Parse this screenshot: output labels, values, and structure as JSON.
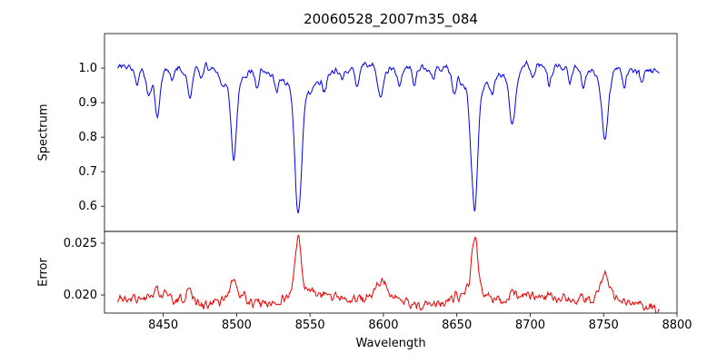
{
  "figure": {
    "background": "#ffffff"
  },
  "chart_data": {
    "type": "line",
    "title": "20060528_2007m35_084",
    "xlabel": "Wavelength",
    "x_start": 8419,
    "x_end": 8788,
    "x_step": 0.5,
    "xlim": [
      8410,
      8800
    ],
    "xticks": [
      {
        "value": 8450,
        "label": "8450"
      },
      {
        "value": 8500,
        "label": "8500"
      },
      {
        "value": 8550,
        "label": "8550"
      },
      {
        "value": 8600,
        "label": "8600"
      },
      {
        "value": 8650,
        "label": "8650"
      },
      {
        "value": 8700,
        "label": "8700"
      },
      {
        "value": 8750,
        "label": "8750"
      },
      {
        "value": 8800,
        "label": "8800"
      }
    ],
    "panels": [
      {
        "name": "spectrum",
        "ylabel": "Spectrum",
        "color": "#0000ee",
        "ylim": [
          0.527,
          1.1
        ],
        "yticks": [
          {
            "value": 1.0,
            "label": "1.0"
          },
          {
            "value": 0.9,
            "label": "0.9"
          },
          {
            "value": 0.8,
            "label": "0.8"
          },
          {
            "value": 0.7,
            "label": "0.7"
          },
          {
            "value": 0.6,
            "label": "0.6"
          }
        ],
        "continuum": 1.0,
        "continuum_wiggles": [
          [
            0.007,
            9.1,
            0.0
          ],
          [
            0.005,
            17.3,
            2.0
          ],
          [
            0.004,
            4.3,
            1.0
          ]
        ],
        "noise_amplitude": 0.03,
        "absorption_lines": [
          [
            8432,
            0.04,
            1.2
          ],
          [
            8440,
            0.06,
            1.3
          ],
          [
            8446,
            0.09,
            1.5
          ],
          [
            8446,
            0.03,
            3.0
          ],
          [
            8456,
            0.04,
            1.2
          ],
          [
            8468,
            0.06,
            1.6
          ],
          [
            8468,
            0.02,
            3.0
          ],
          [
            8476,
            0.04,
            1.2
          ],
          [
            8490,
            0.03,
            1.2
          ],
          [
            8498,
            0.21,
            1.9
          ],
          [
            8498,
            0.04,
            7.0
          ],
          [
            8514,
            0.05,
            1.4
          ],
          [
            8527,
            0.04,
            1.3
          ],
          [
            8542,
            0.35,
            2.2
          ],
          [
            8542,
            0.07,
            11.0
          ],
          [
            8560,
            0.04,
            1.3
          ],
          [
            8572,
            0.03,
            1.2
          ],
          [
            8582,
            0.05,
            1.4
          ],
          [
            8598,
            0.08,
            1.7
          ],
          [
            8598,
            0.02,
            3.0
          ],
          [
            8611,
            0.04,
            1.3
          ],
          [
            8621,
            0.05,
            1.4
          ],
          [
            8634,
            0.03,
            1.2
          ],
          [
            8648,
            0.06,
            1.5
          ],
          [
            8662,
            0.34,
            2.1
          ],
          [
            8662,
            0.06,
            9.0
          ],
          [
            8674,
            0.05,
            1.4
          ],
          [
            8688,
            0.13,
            1.9
          ],
          [
            8688,
            0.03,
            4.0
          ],
          [
            8702,
            0.04,
            1.3
          ],
          [
            8713,
            0.05,
            1.3
          ],
          [
            8727,
            0.04,
            1.2
          ],
          [
            8736,
            0.05,
            1.3
          ],
          [
            8751,
            0.17,
            2.0
          ],
          [
            8751,
            0.04,
            5.0
          ],
          [
            8764,
            0.05,
            1.3
          ],
          [
            8776,
            0.04,
            1.2
          ]
        ]
      },
      {
        "name": "error",
        "ylabel": "Error",
        "color": "#ee0000",
        "ylim": [
          0.01825,
          0.02614
        ],
        "yticks": [
          {
            "value": 0.025,
            "label": "0.025"
          },
          {
            "value": 0.02,
            "label": "0.020"
          }
        ],
        "baseline": 0.0195,
        "baseline_wiggles": [
          [
            0.0003,
            23.0,
            0.5
          ],
          [
            0.0002,
            8.0,
            1.5
          ]
        ],
        "noise_amplitude": 0.0015,
        "peaks": [
          [
            8446,
            0.0005,
            2.5
          ],
          [
            8468,
            0.0008,
            3.0
          ],
          [
            8498,
            0.0018,
            2.2
          ],
          [
            8498,
            0.0005,
            6.0
          ],
          [
            8542,
            0.005,
            2.0
          ],
          [
            8542,
            0.0009,
            8.0
          ],
          [
            8598,
            0.0013,
            2.5
          ],
          [
            8598,
            0.0004,
            6.0
          ],
          [
            8662,
            0.0055,
            2.0
          ],
          [
            8662,
            0.001,
            8.0
          ],
          [
            8688,
            0.0007,
            2.5
          ],
          [
            8751,
            0.0016,
            2.5
          ],
          [
            8751,
            0.0004,
            6.0
          ],
          [
            8787,
            -0.0008,
            2.0
          ]
        ]
      }
    ]
  }
}
